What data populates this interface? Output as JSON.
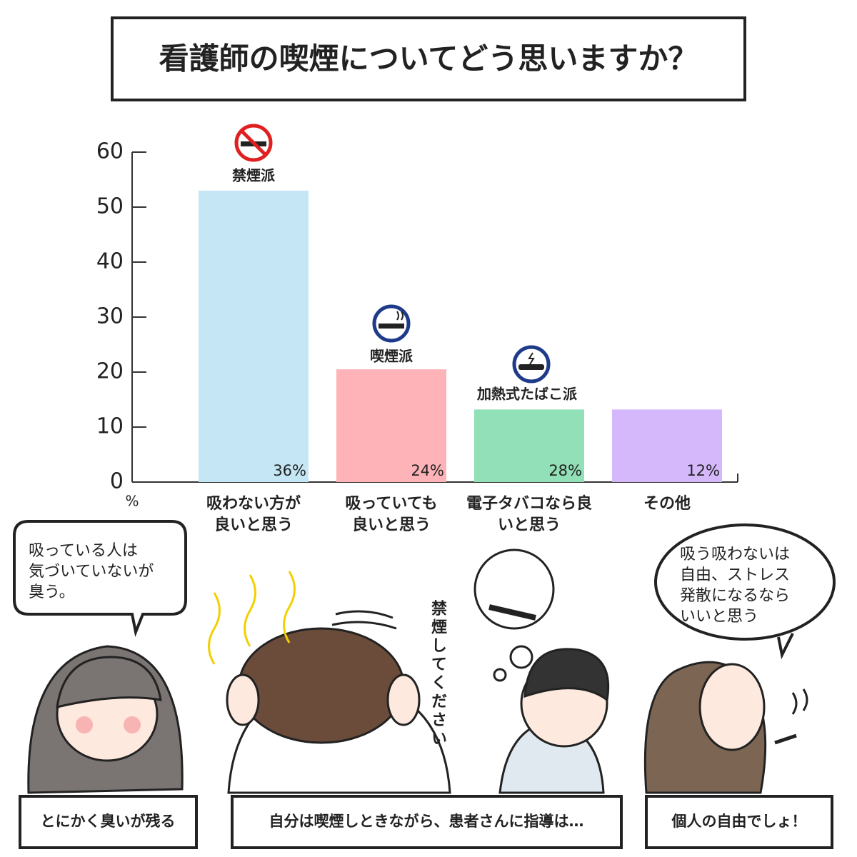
{
  "chart_data": {
    "type": "bar",
    "title": "看護師の喫煙についてどう思いますか？",
    "categories": [
      "吸わない方が\n良いと思う",
      "吸っていても\n良いと思う",
      "電子タバコなら良\nいと思う",
      "その他"
    ],
    "values": [
      53,
      20.5,
      13.2,
      13.2
    ],
    "colors": [
      "#c5e6f5",
      "#fdb3b7",
      "#92e0b7",
      "#d5b8fc"
    ],
    "bar_notes": [
      "36%",
      "24%",
      "28%",
      "12%"
    ],
    "group_labels": [
      "禁煙派",
      "喫煙派",
      "加熱式たばこ派"
    ],
    "ylabel": "%",
    "ylim": [
      0,
      60
    ],
    "yticks": [
      0,
      10,
      20,
      30,
      40,
      50,
      60
    ],
    "grid": false
  },
  "comic": {
    "bubbles": [
      [
        "吸っている人は",
        "気づいていないが",
        "臭う。"
      ],
      [
        "吸う吸わないは",
        "自由、ストレス",
        "発散になるなら",
        "いいと思う"
      ]
    ],
    "vertical_text": "禁煙してください",
    "captions": [
      "とにかく臭いが残る",
      "自分は喫煙しときながら、患者さんに指導は…",
      "個人の自由でしょ！"
    ]
  }
}
